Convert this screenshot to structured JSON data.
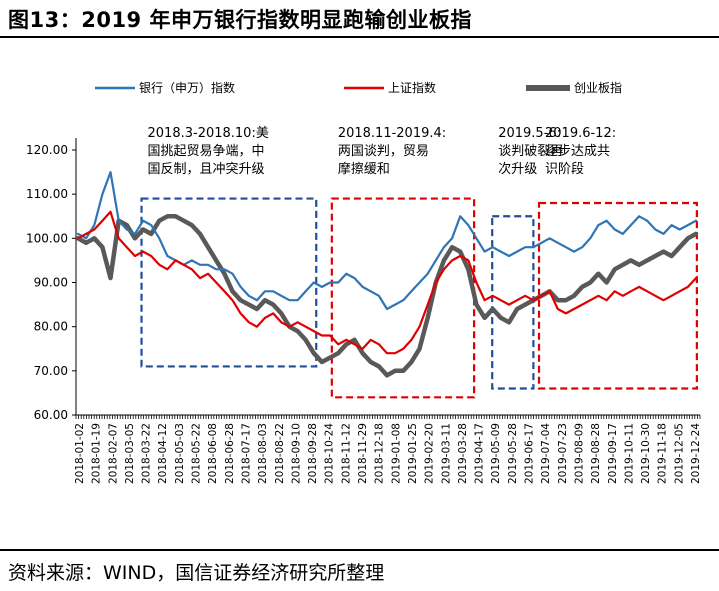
{
  "header": {
    "title": "图13：2019 年申万银行指数明显跑输创业板指",
    "source": "资料来源：WIND，国信证券经济研究所整理"
  },
  "chart_data": {
    "type": "line",
    "title": "",
    "xlabel": "",
    "ylabel": "",
    "ylim": [
      60,
      120
    ],
    "yticks": [
      "60.00",
      "70.00",
      "80.00",
      "90.00",
      "100.00",
      "110.00",
      "120.00"
    ],
    "x_tick_labels": [
      "2018-01-02",
      "2018-01-19",
      "2018-02-07",
      "2018-03-05",
      "2018-03-22",
      "2018-04-12",
      "2018-05-03",
      "2018-05-22",
      "2018-06-08",
      "2018-06-28",
      "2018-07-17",
      "2018-08-03",
      "2018-08-22",
      "2018-09-10",
      "2018-09-28",
      "2018-10-24",
      "2018-11-12",
      "2018-11-29",
      "2018-12-18",
      "2019-01-08",
      "2019-01-25",
      "2019-02-20",
      "2019-03-11",
      "2019-03-28",
      "2019-04-17",
      "2019-05-09",
      "2019-05-28",
      "2019-06-17",
      "2019-07-04",
      "2019-07-23",
      "2019-08-09",
      "2019-08-28",
      "2019-09-17",
      "2019-10-11",
      "2019-10-30",
      "2019-11-18",
      "2019-12-05",
      "2019-12-24"
    ],
    "legend_position": "top",
    "grid": false,
    "series": [
      {
        "name": "银行（申万）指数",
        "color": "#2e75b6",
        "values": [
          101,
          100,
          103,
          110,
          115,
          104,
          102,
          101,
          104,
          103,
          100,
          96,
          95,
          94,
          95,
          94,
          94,
          93,
          93,
          92,
          89,
          87,
          86,
          88,
          88,
          87,
          86,
          86,
          88,
          90,
          89,
          90,
          90,
          92,
          91,
          89,
          88,
          87,
          84,
          85,
          86,
          88,
          90,
          92,
          95,
          98,
          100,
          105,
          103,
          100,
          97,
          98,
          97,
          96,
          97,
          98,
          98,
          99,
          100,
          99,
          98,
          97,
          98,
          100,
          103,
          104,
          102,
          101,
          103,
          105,
          104,
          102,
          101,
          103,
          102,
          103,
          104
        ]
      },
      {
        "name": "上证指数",
        "color": "#e00000",
        "values": [
          100,
          101,
          102,
          104,
          106,
          100,
          98,
          96,
          97,
          96,
          94,
          93,
          95,
          94,
          93,
          91,
          92,
          90,
          88,
          86,
          83,
          81,
          80,
          82,
          83,
          81,
          80,
          81,
          80,
          79,
          78,
          78,
          76,
          77,
          76,
          75,
          77,
          76,
          74,
          74,
          75,
          77,
          80,
          85,
          90,
          93,
          95,
          96,
          95,
          90,
          86,
          87,
          86,
          85,
          86,
          87,
          86,
          87,
          88,
          84,
          83,
          84,
          85,
          86,
          87,
          86,
          88,
          87,
          88,
          89,
          88,
          87,
          86,
          87,
          88,
          89,
          91
        ]
      },
      {
        "name": "创业板指",
        "color": "#595959",
        "values": [
          100,
          99,
          100,
          98,
          91,
          104,
          103,
          100,
          102,
          101,
          104,
          105,
          105,
          104,
          103,
          101,
          98,
          95,
          92,
          88,
          86,
          85,
          84,
          86,
          85,
          83,
          80,
          79,
          77,
          74,
          72,
          73,
          74,
          76,
          77,
          74,
          72,
          71,
          69,
          70,
          70,
          72,
          75,
          82,
          90,
          95,
          98,
          97,
          93,
          85,
          82,
          84,
          82,
          81,
          84,
          85,
          86,
          87,
          88,
          86,
          86,
          87,
          89,
          90,
          92,
          90,
          93,
          94,
          95,
          94,
          95,
          96,
          97,
          96,
          98,
          100,
          101
        ]
      }
    ],
    "annotations": [
      {
        "color": "#1f4e9c",
        "x_range": [
          0.105,
          0.385
        ],
        "y_range": [
          71,
          109
        ],
        "lines": [
          "2018.3-2018.10:美",
          "国挑起贸易争端，中",
          "国反制，且冲突升级"
        ]
      },
      {
        "color": "#e00000",
        "x_range": [
          0.41,
          0.638
        ],
        "y_range": [
          64,
          109
        ],
        "lines": [
          "2018.11-2019.4:",
          "两国谈判，贸易",
          "摩擦缓和"
        ]
      },
      {
        "color": "#1f4e9c",
        "x_range": [
          0.667,
          0.733
        ],
        "y_range": [
          66,
          105
        ],
        "lines": [
          "2019.5-6:",
          "谈判破裂再",
          "次升级"
        ]
      },
      {
        "color": "#e00000",
        "x_range": [
          0.742,
          0.995
        ],
        "y_range": [
          66,
          108
        ],
        "lines": [
          "2019.6-12:",
          "逐步达成共",
          "识阶段"
        ]
      }
    ]
  }
}
